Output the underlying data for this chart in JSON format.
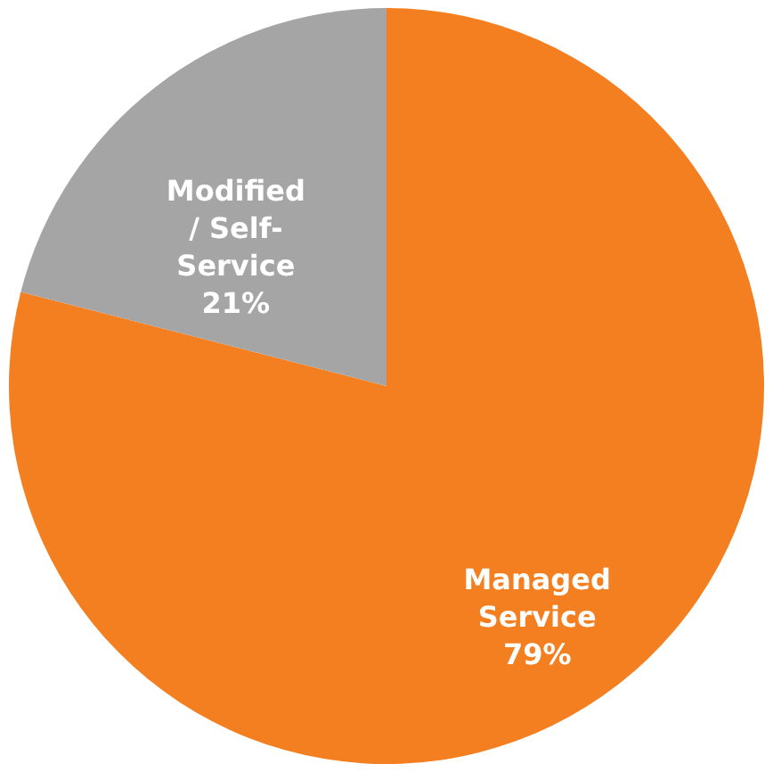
{
  "chart_data": {
    "type": "pie",
    "categories": [
      "Managed Service",
      "Modified / Self-Service"
    ],
    "values": [
      79,
      21
    ],
    "colors": [
      "#f47f20",
      "#a5a5a5"
    ],
    "value_labels": [
      "79%",
      "21%"
    ]
  }
}
